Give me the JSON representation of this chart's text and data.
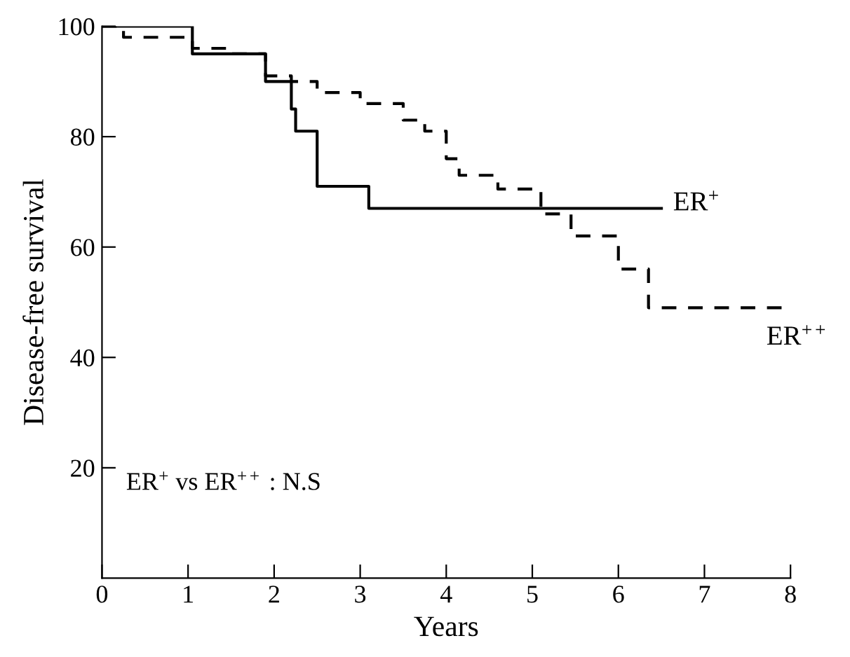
{
  "chart_data": {
    "type": "step",
    "xlabel": "Years",
    "ylabel": "Disease-free survival",
    "xlim": [
      0,
      8
    ],
    "ylim": [
      0,
      100
    ],
    "xticks": [
      0,
      1,
      2,
      3,
      4,
      5,
      6,
      7,
      8
    ],
    "yticks": [
      20,
      40,
      60,
      80,
      100
    ],
    "grid": false,
    "legend": false,
    "marker": "none",
    "annotations": [
      "ER$^{+}$ vs ER$^{++}$ : N.S"
    ],
    "series": [
      {
        "name": "ER$^{+}$",
        "color": "#000000",
        "line_style": "solid",
        "x": [
          0,
          1.05,
          1.9,
          2.2,
          2.25,
          2.5,
          3.1,
          6.5
        ],
        "values": [
          100,
          95,
          90,
          85,
          81,
          71,
          67,
          67
        ]
      },
      {
        "name": "ER$^{++}$",
        "color": "#000000",
        "line_style": "dashed",
        "x": [
          0,
          0.25,
          1.05,
          1.5,
          1.9,
          2.2,
          2.5,
          3.0,
          3.5,
          3.75,
          4.0,
          4.15,
          4.6,
          5.1,
          5.45,
          6.0,
          6.35,
          7.95
        ],
        "values": [
          100,
          98,
          96,
          95,
          91,
          90,
          88,
          86,
          83,
          81,
          76,
          73,
          70.5,
          66,
          62,
          56,
          49,
          49
        ]
      }
    ]
  }
}
